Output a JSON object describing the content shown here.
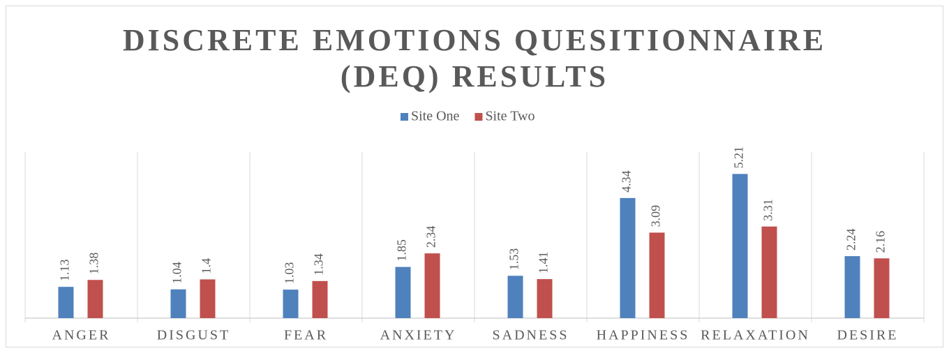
{
  "chart_data": {
    "type": "bar",
    "title": "DISCRETE EMOTIONS QUESITIONNAIRE (DEQ) RESULTS",
    "categories": [
      "ANGER",
      "DISGUST",
      "FEAR",
      "ANXIETY",
      "SADNESS",
      "HAPPINESS",
      "RELAXATION",
      "DESIRE"
    ],
    "series": [
      {
        "name": "Site One",
        "color": "#4f81bd",
        "values": [
          1.13,
          1.04,
          1.03,
          1.85,
          1.53,
          4.34,
          5.21,
          2.24
        ]
      },
      {
        "name": "Site Two",
        "color": "#c0504d",
        "values": [
          1.38,
          1.4,
          1.34,
          2.34,
          1.41,
          3.09,
          3.31,
          2.16
        ]
      }
    ],
    "ylim": [
      0,
      6
    ],
    "legend": "top"
  }
}
